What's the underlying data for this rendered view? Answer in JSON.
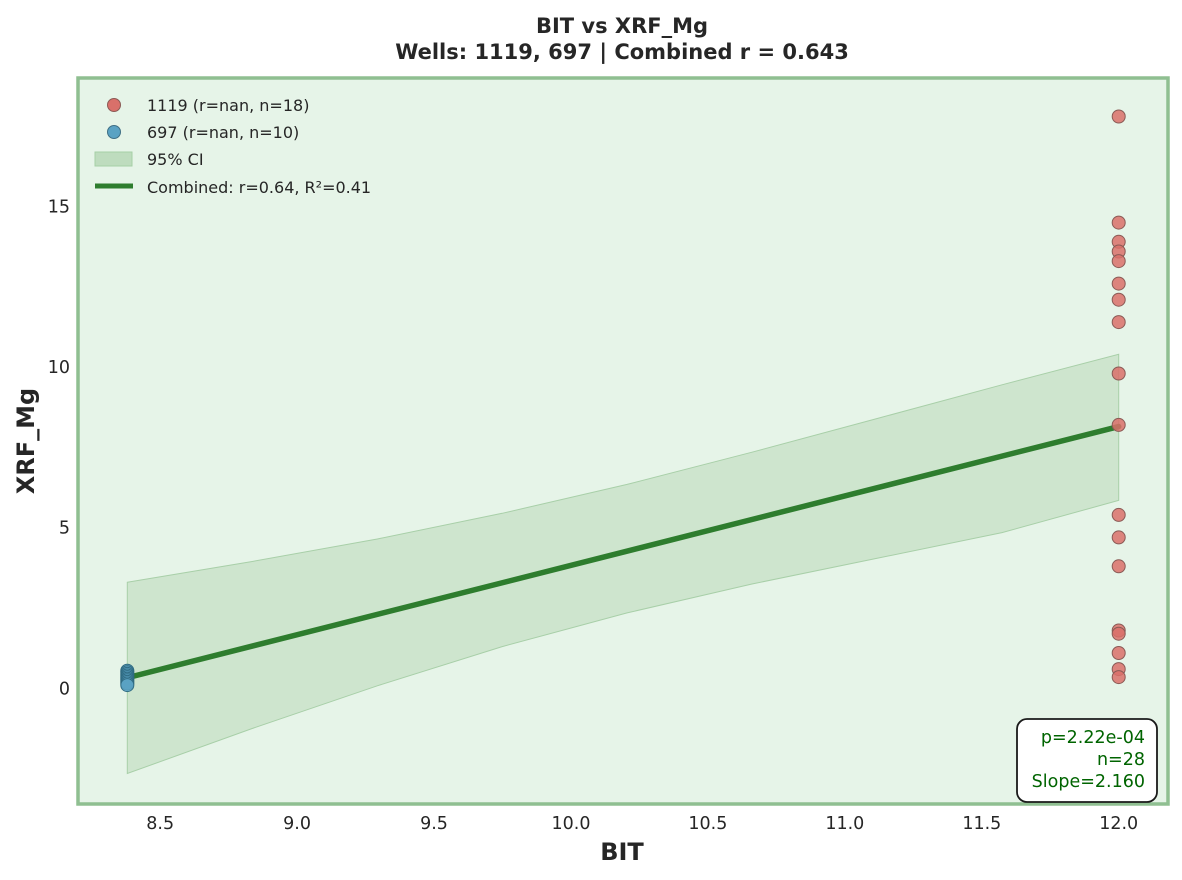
{
  "chart_data": {
    "type": "scatter",
    "title": "BIT vs XRF_Mg",
    "subtitle": "Wells: 1119, 697 | Combined r = 0.643",
    "xlabel": "BIT",
    "ylabel": "XRF_Mg",
    "xlim": [
      8.2,
      12.18
    ],
    "ylim": [
      -3.6,
      19.0
    ],
    "x_ticks": [
      8.5,
      9.0,
      9.5,
      10.0,
      10.5,
      11.0,
      11.5,
      12.0
    ],
    "x_tick_labels": [
      "8.5",
      "9.0",
      "9.5",
      "10.0",
      "10.5",
      "11.0",
      "11.5",
      "12.0"
    ],
    "y_ticks": [
      0,
      5,
      10,
      15
    ],
    "y_tick_labels": [
      "0",
      "5",
      "10",
      "15"
    ],
    "grid": false,
    "legend_position": "top-left",
    "colors": {
      "background": "#e6f4e8",
      "frame": "#8fbf91",
      "series_1119": "#d9706a",
      "series_697": "#5aa2c3",
      "fit_line": "#2e7d2e",
      "ci_band": "#bedcbe",
      "stats_text": "#006400"
    },
    "series": [
      {
        "name": "1119 (r=nan, n=18)",
        "x": [
          12.0,
          12.0,
          12.0,
          12.0,
          12.0,
          12.0,
          12.0,
          12.0,
          12.0,
          12.0,
          12.0,
          12.0,
          12.0,
          12.0,
          12.0,
          12.0,
          12.0,
          12.0
        ],
        "y": [
          17.8,
          14.5,
          13.9,
          13.6,
          13.3,
          12.6,
          12.1,
          11.4,
          9.8,
          8.2,
          5.4,
          4.7,
          3.8,
          1.8,
          1.7,
          1.1,
          0.6,
          0.35
        ]
      },
      {
        "name": "697 (r=nan, n=10)",
        "x": [
          8.38,
          8.38,
          8.38,
          8.38,
          8.38,
          8.38,
          8.38,
          8.38,
          8.38,
          8.38
        ],
        "y": [
          0.55,
          0.5,
          0.45,
          0.4,
          0.35,
          0.3,
          0.25,
          0.2,
          0.15,
          0.1
        ]
      }
    ],
    "ci_band": {
      "name": "95% CI",
      "x": [
        8.38,
        8.836,
        9.293,
        9.749,
        10.205,
        10.661,
        11.118,
        11.574,
        12.0
      ],
      "lower": [
        -2.65,
        -1.25,
        0.08,
        1.3,
        2.35,
        3.25,
        4.05,
        4.85,
        5.85
      ],
      "upper": [
        3.3,
        3.95,
        4.65,
        5.45,
        6.35,
        7.35,
        8.4,
        9.45,
        10.4
      ]
    },
    "fit_line": {
      "name": "Combined: r=0.64, R²=0.41",
      "x": [
        8.38,
        12.0
      ],
      "y": [
        0.33,
        8.15
      ]
    },
    "stats_box": {
      "lines": [
        "p=2.22e-04",
        "n=28",
        "Slope=2.160"
      ]
    }
  }
}
